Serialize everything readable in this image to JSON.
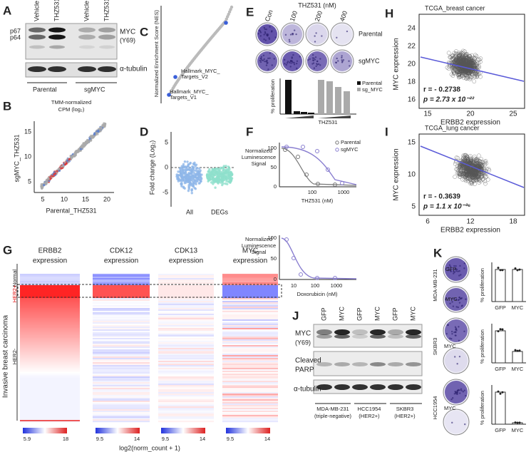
{
  "panels": {
    "A": {
      "letter": "A",
      "lanes": [
        "Vehicle",
        "THZ531",
        "Vehicle",
        "THZ531"
      ],
      "bands": [
        "p67",
        "p64"
      ],
      "blot_labels": [
        "MYC",
        "(Y69)",
        "α-tubulin"
      ],
      "groups": [
        "Parental",
        "sgMYC"
      ]
    },
    "B": {
      "letter": "B",
      "title": [
        "TMM-normalized",
        "CPM (log₂)"
      ],
      "ylabel": "sgMYC_THZ531",
      "xlabel": "Parental_THZ531",
      "xticks": [
        "5",
        "10",
        "15",
        "20"
      ],
      "yticks": [
        "5",
        "10",
        "15"
      ]
    },
    "C": {
      "letter": "C",
      "ylabel": "Normalized Enrichment Score (NES)",
      "annotations": [
        [
          "Hallmark_MYC_",
          "Targets_V2"
        ],
        [
          "Hallmark_MYC_",
          "Targets_V1"
        ]
      ]
    },
    "D": {
      "letter": "D",
      "ylabel": "Fold change (Log₂)",
      "yticks": [
        "5",
        "0",
        "-5"
      ],
      "categories": [
        "All",
        "DEGs"
      ]
    },
    "E": {
      "letter": "E",
      "dose_title": "THZ531 (nM)",
      "doses": [
        "Con",
        "100",
        "200",
        "400"
      ],
      "rows": [
        "Parental",
        "sgMYC"
      ],
      "ylabel": "% proliferation",
      "xlabel": "THZ531",
      "legend": [
        "Parental",
        "sg_MYC"
      ]
    },
    "F": {
      "letter": "F",
      "ylabel": [
        "Normalized",
        "Luminescence",
        "Signal"
      ],
      "yticks": [
        "0",
        "50",
        "100"
      ],
      "top_xticks": [
        "100",
        "1000"
      ],
      "top_xlabel": "THZ531 (nM)",
      "legend": [
        "Parental",
        "sgMYC"
      ],
      "bottom_xticks": [
        "10",
        "100",
        "1000"
      ],
      "bottom_xlabel": "Doxorubicin (nM)"
    },
    "G": {
      "letter": "G",
      "headers": [
        [
          "ERBB2",
          "expression"
        ],
        [
          "CDK12",
          "expression"
        ],
        [
          "CDK13",
          "expression"
        ],
        [
          "MYC",
          "expression"
        ]
      ],
      "groups": [
        "Normal",
        "HER2+",
        "HER2-"
      ],
      "side_label": "Invasive breast carcinoma",
      "scale_labels": [
        [
          "5.9",
          "18"
        ],
        [
          "9.5",
          "14"
        ],
        [
          "9.5",
          "14"
        ],
        [
          "9.5",
          "14"
        ]
      ],
      "scale_title": "log2(norm_count + 1)"
    },
    "H": {
      "letter": "H",
      "title": "TCGA_breast cancer",
      "ylabel": "MYC expression",
      "xlabel": "ERBB2 expression",
      "yticks": [
        "16",
        "18",
        "20",
        "22",
        "24"
      ],
      "xticks": [
        "15",
        "20",
        "25"
      ],
      "r": "r = - 0.2738",
      "p": "p = 2.73 x 10⁻²²"
    },
    "I": {
      "letter": "I",
      "title": "TCGA_lung cancer",
      "ylabel": "MYC expression",
      "xlabel": "ERBB2 expression",
      "yticks": [
        "5",
        "10",
        "15"
      ],
      "xticks": [
        "6",
        "12",
        "18"
      ],
      "r": "r = - 0.3639",
      "p": "p = 1.1 x 10⁻³⁶"
    },
    "J": {
      "letter": "J",
      "lanes": [
        "GFP",
        "MYC",
        "GFP",
        "MYC",
        "GFP",
        "MYC"
      ],
      "blot_labels": [
        [
          "MYC",
          "(Y69)"
        ],
        [
          "Cleaved",
          "PARP"
        ],
        [
          "α-tubulin"
        ]
      ],
      "lines": [
        [
          "MDA-MB-231",
          "(triple-negative)"
        ],
        [
          "HCC1954",
          "(HER2+)"
        ],
        [
          "SKBR3",
          "(HER2+)"
        ]
      ]
    },
    "K": {
      "letter": "K",
      "lines": [
        "MDA-MB-231",
        "SKBR3",
        "HCC1954"
      ],
      "plates": [
        "GFP",
        "MYC"
      ],
      "ylabel": "% proliferation",
      "categories": [
        "GFP",
        "MYC"
      ]
    }
  }
}
